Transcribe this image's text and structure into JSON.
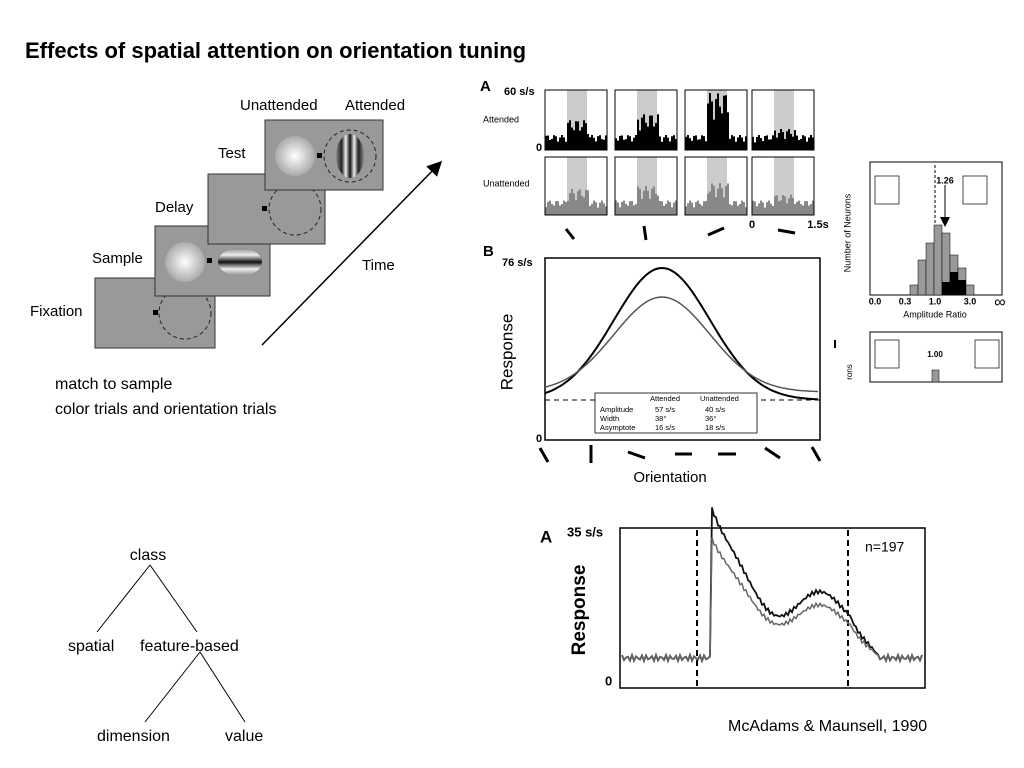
{
  "title": "Effects of spatial attention on orientation tuning",
  "task_figure": {
    "labels": [
      "Unattended",
      "Attended",
      "Test",
      "Delay",
      "Sample",
      "Fixation",
      "Time"
    ]
  },
  "notes": [
    "match to sample",
    "color trials and orientation trials"
  ],
  "tree": {
    "nodes": [
      {
        "label": "class"
      },
      {
        "label": "spatial"
      },
      {
        "label": "feature-based"
      },
      {
        "label": "dimension"
      },
      {
        "label": "value"
      }
    ]
  },
  "figure_a": {
    "panel": "A",
    "y_top": "60 s/s",
    "y_zero": "0",
    "rows": [
      "Attended",
      "Unattended"
    ],
    "x_labels": [
      "0",
      "1.5s"
    ]
  },
  "figure_b": {
    "panel": "B",
    "y_top": "76 s/s",
    "y_zero": "0",
    "y_label": "Response",
    "x_label": "Orientation",
    "table": {
      "header": [
        "Attended",
        "Unattended"
      ],
      "rows": [
        [
          "Amplitude",
          "57 s/s",
          "40 s/s"
        ],
        [
          "Width",
          "38°",
          "36°"
        ],
        [
          "Asymptote",
          "16 s/s",
          "18 s/s"
        ]
      ]
    }
  },
  "histogram": {
    "y_label": "Number of Neurons",
    "x_label": "Amplitude Ratio",
    "x_ticks": [
      "0.0",
      "0.3",
      "1.0",
      "3.0",
      "∞"
    ],
    "marker": "1.26",
    "marker_lower": "1.00",
    "y_label_lower": "rons"
  },
  "figure_c": {
    "panel": "A",
    "y_top": "35 s/s",
    "y_zero": "0",
    "y_label": "Response",
    "n": "n=197"
  },
  "citation": "McAdams & Maunsell, 1990"
}
